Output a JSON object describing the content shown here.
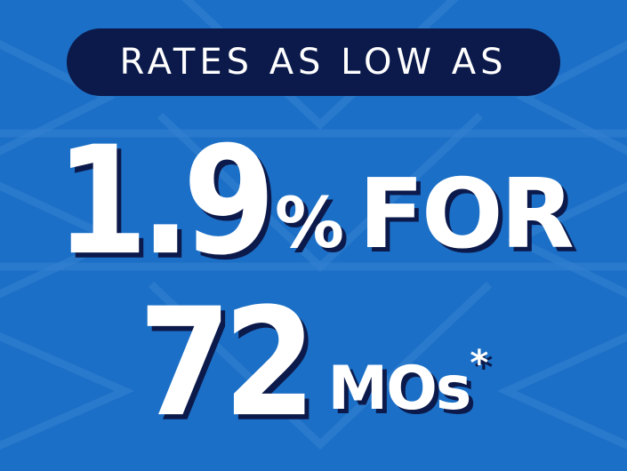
{
  "banner": {
    "label": "RATES AS LOW AS"
  },
  "headline": {
    "line1": {
      "rate": "1.9",
      "percent": "%",
      "word": "FOR"
    },
    "line2": {
      "term": "72",
      "unit": "MOs",
      "footnote_mark": "*"
    }
  }
}
